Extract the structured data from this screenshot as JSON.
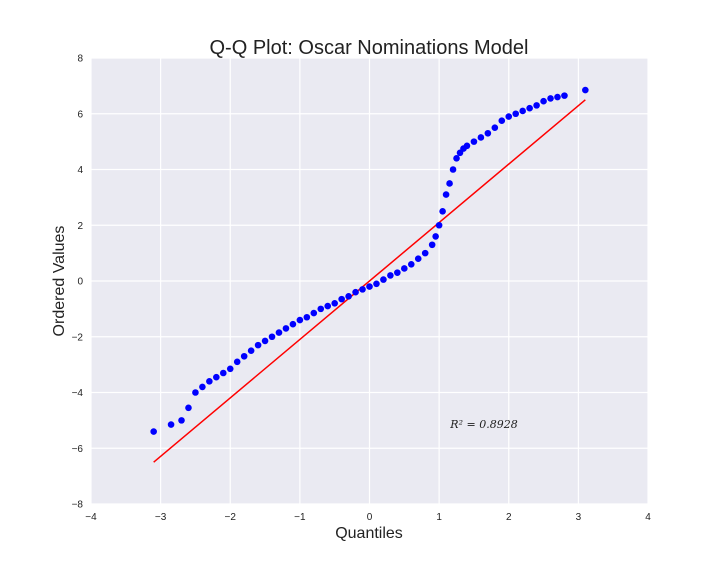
{
  "chart_data": {
    "type": "scatter",
    "title": "Q-Q Plot: Oscar Nominations Model",
    "xlabel": "Quantiles",
    "ylabel": "Ordered Values",
    "xlim": [
      -4,
      4
    ],
    "ylim": [
      -8,
      8
    ],
    "xticks": [
      -4,
      -3,
      -2,
      -1,
      0,
      1,
      2,
      3,
      4
    ],
    "yticks": [
      -8,
      -6,
      -4,
      -2,
      0,
      2,
      4,
      6,
      8
    ],
    "xtick_labels": [
      "−4",
      "−3",
      "−2",
      "−1",
      "0",
      "1",
      "2",
      "3",
      "4"
    ],
    "ytick_labels": [
      "−8",
      "−6",
      "−4",
      "−2",
      "0",
      "2",
      "4",
      "6",
      "8"
    ],
    "grid": true,
    "annotation": "R² = 0.8928",
    "colors": {
      "points": "#0000ff",
      "fit_line": "#ff0000",
      "plot_bg": "#eaeaf2",
      "grid": "#ffffff"
    },
    "fit_line": {
      "x": [
        -3.1,
        3.1
      ],
      "y": [
        -6.5,
        6.5
      ]
    },
    "points": {
      "x": [
        -3.1,
        -2.85,
        -2.7,
        -2.6,
        -2.5,
        -2.4,
        -2.3,
        -2.2,
        -2.1,
        -2.0,
        -1.9,
        -1.8,
        -1.7,
        -1.6,
        -1.5,
        -1.4,
        -1.3,
        -1.2,
        -1.1,
        -1.0,
        -0.9,
        -0.8,
        -0.7,
        -0.6,
        -0.5,
        -0.4,
        -0.3,
        -0.2,
        -0.1,
        0.0,
        0.1,
        0.2,
        0.3,
        0.4,
        0.5,
        0.6,
        0.7,
        0.8,
        0.9,
        0.95,
        1.0,
        1.05,
        1.1,
        1.15,
        1.2,
        1.25,
        1.3,
        1.35,
        1.4,
        1.5,
        1.6,
        1.7,
        1.8,
        1.9,
        2.0,
        2.1,
        2.2,
        2.3,
        2.4,
        2.5,
        2.6,
        2.7,
        2.8,
        3.1
      ],
      "y": [
        -5.4,
        -5.15,
        -5.0,
        -4.55,
        -4.0,
        -3.8,
        -3.6,
        -3.45,
        -3.3,
        -3.15,
        -2.9,
        -2.7,
        -2.5,
        -2.3,
        -2.15,
        -2.0,
        -1.85,
        -1.7,
        -1.55,
        -1.4,
        -1.3,
        -1.15,
        -1.0,
        -0.9,
        -0.8,
        -0.65,
        -0.55,
        -0.4,
        -0.3,
        -0.2,
        -0.1,
        0.05,
        0.2,
        0.3,
        0.45,
        0.6,
        0.8,
        1.0,
        1.3,
        1.6,
        2.0,
        2.5,
        3.1,
        3.5,
        4.0,
        4.4,
        4.6,
        4.75,
        4.85,
        5.0,
        5.15,
        5.3,
        5.5,
        5.75,
        5.9,
        6.0,
        6.1,
        6.2,
        6.3,
        6.45,
        6.55,
        6.6,
        6.65,
        6.85
      ]
    }
  }
}
